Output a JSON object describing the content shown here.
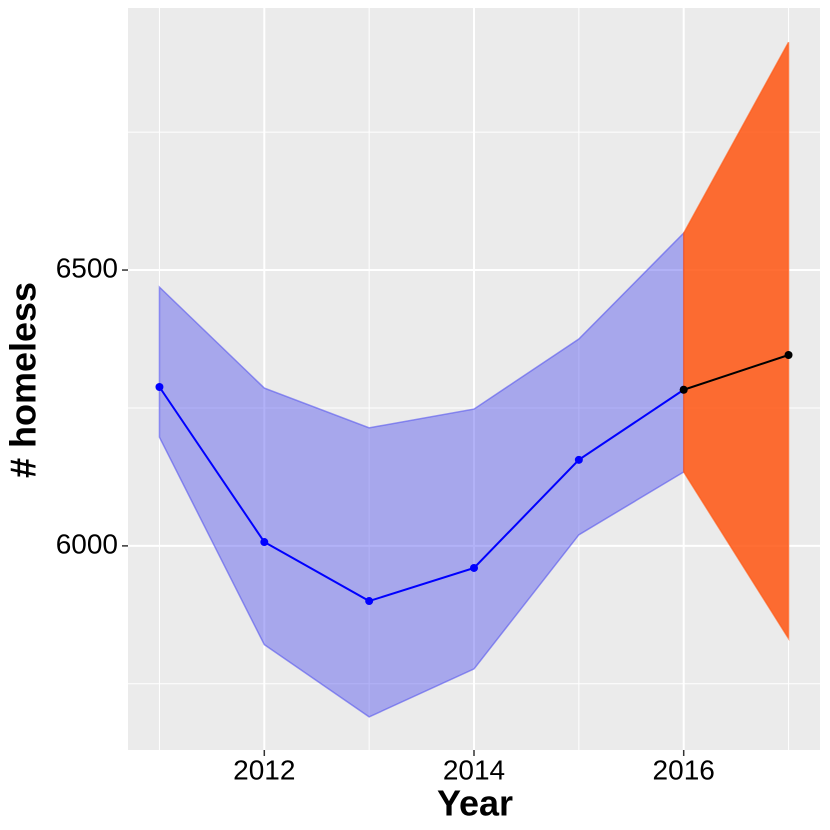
{
  "chart_data": {
    "type": "line",
    "x_label": "Year",
    "y_label": "# homeless",
    "xlim": [
      2010.7,
      2017.3
    ],
    "ylim": [
      5630,
      6975
    ],
    "xticks": [
      2012,
      2014,
      2016
    ],
    "yticks": [
      6000,
      6500
    ],
    "minor_xticks": [
      2011,
      2013,
      2015,
      2017
    ],
    "minor_yticks": [
      5750,
      6250,
      6750
    ],
    "grid": true,
    "series": [
      {
        "color": "#0000ff",
        "band_color": "#5555ee",
        "x": [
          2011,
          2012,
          2013,
          2014,
          2015,
          2016
        ],
        "values": [
          6288,
          6007,
          5900,
          5960,
          6156,
          6283
        ],
        "upper": [
          6469,
          6286,
          6214,
          6248,
          6375,
          6567
        ],
        "lower": [
          6197,
          5821,
          5690,
          5777,
          6020,
          6134
        ]
      },
      {
        "color": "#000000",
        "band_color": "#ff5511",
        "x": [
          2016,
          2017
        ],
        "values": [
          6283,
          6346
        ],
        "upper": [
          6567,
          6913
        ],
        "lower": [
          6134,
          5832
        ]
      }
    ]
  }
}
